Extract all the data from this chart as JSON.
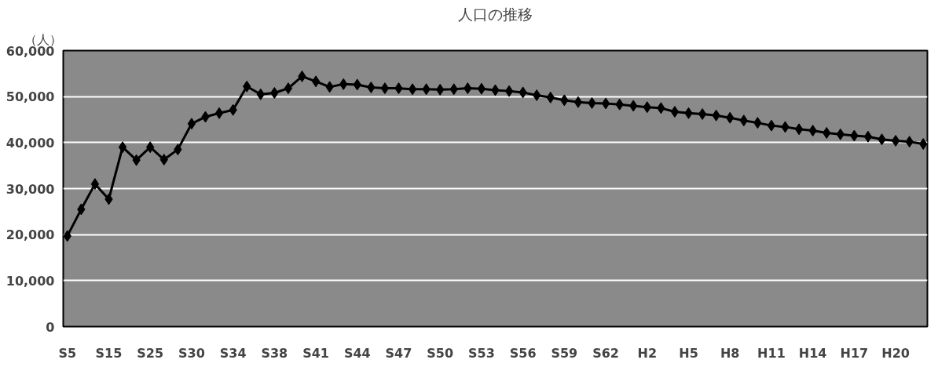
{
  "chart_data": {
    "type": "line",
    "title": "人口の推移",
    "ylabel": "（人）",
    "categories": [
      "S5",
      null,
      null,
      "S15",
      null,
      null,
      "S25",
      null,
      null,
      "S30",
      null,
      null,
      "S34",
      null,
      null,
      "S38",
      null,
      null,
      "S41",
      null,
      null,
      "S44",
      null,
      null,
      "S47",
      null,
      null,
      "S50",
      null,
      null,
      "S53",
      null,
      null,
      "S56",
      null,
      null,
      "S59",
      null,
      null,
      "S62",
      null,
      null,
      "H2",
      null,
      null,
      "H5",
      null,
      null,
      "H8",
      null,
      null,
      "H11",
      null,
      null,
      "H14",
      null,
      null,
      "H17",
      null,
      null,
      "H20",
      null,
      null
    ],
    "series": [
      {
        "color": "#000000",
        "values": [
          19700,
          25500,
          31000,
          27700,
          39000,
          36200,
          39000,
          36300,
          38500,
          44100,
          45600,
          46400,
          47100,
          52200,
          50500,
          50800,
          51800,
          54400,
          53300,
          52100,
          52700,
          52600,
          52000,
          51800,
          51800,
          51600,
          51600,
          51500,
          51600,
          51800,
          51700,
          51400,
          51200,
          50900,
          50300,
          49800,
          49200,
          48800,
          48600,
          48500,
          48300,
          48000,
          47700,
          47500,
          46700,
          46400,
          46200,
          45900,
          45400,
          44800,
          44300,
          43700,
          43400,
          42900,
          42600,
          42100,
          41800,
          41500,
          41300,
          40700,
          40400,
          40200,
          39700
        ]
      }
    ],
    "ylim": [
      0,
      60000
    ],
    "yticks": [
      0,
      {
        "value": 10000,
        "label": "10,000"
      },
      {
        "value": 20000,
        "label": "20,000"
      },
      {
        "value": 30000,
        "label": "30,000"
      },
      {
        "value": 40000,
        "label": "40,000"
      },
      {
        "value": 50000,
        "label": "50,000"
      },
      {
        "value": 60000,
        "label": "60,000"
      }
    ],
    "grid": "y",
    "marker": "diamond",
    "line_style": "solid"
  }
}
